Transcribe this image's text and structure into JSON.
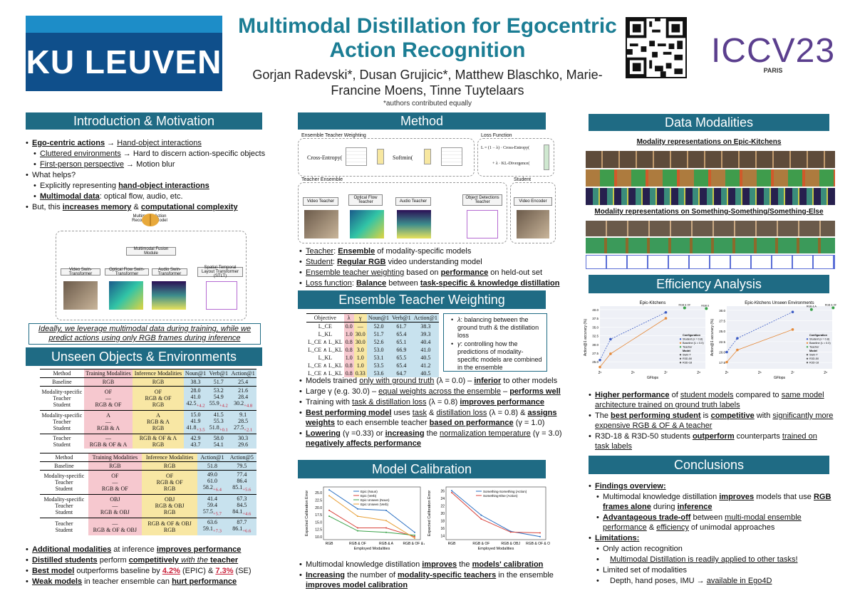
{
  "header": {
    "logo": "KU LEUVEN",
    "title": "Multimodal Distillation for Egocentric Action Recognition",
    "authors": "Gorjan Radevski*, Dusan Grujicic*, Matthew Blaschko, Marie-Francine Moens, Tinne Tuytelaars",
    "equal": "*authors contributed equally",
    "venue": "ICCV23",
    "city": "PARIS"
  },
  "intro": {
    "header": "Introduction & Motivation",
    "b1a": "Ego-centric actions",
    "b1b": " → ",
    "b1c": "Hand-object interactions",
    "b2a": "Cluttered environments",
    "b2b": " → Hard to discern action-specific objects",
    "b3a": "First-person perspective",
    "b3b": " → Motion blur",
    "b4": "What helps?",
    "b5a": "Explicitly representing ",
    "b5b": "hand-object interactions",
    "b6a": "Multimodal data",
    "b6b": ": optical flow, audio, etc.",
    "b7a": "But, this ",
    "b7b": "increases memory",
    "b7c": " & ",
    "b7d": "computational complexity",
    "diag_title": "Multimodal Action Recognition Model",
    "fusion": "Multimodal Fusion Module",
    "m1": "Video Swin-Transformer",
    "m2": "Optical Flow Swin-Transformer",
    "m3": "Audio Swin-Transformer",
    "m4": "Spatial-Temporal Layout Transformer (STLT)",
    "italic": "Ideally, we leverage multimodal data during training, while we predict actions using only RGB frames during inference"
  },
  "unseen": {
    "header": "Unseen Objects & Environments",
    "t1_head": [
      "Method",
      "Training Modalities",
      "Inference Modalities",
      "Noun@1",
      "Verb@1",
      "Action@1"
    ],
    "t1_baseline": [
      "Baseline",
      "RGB",
      "RGB",
      "38.3",
      "51.7",
      "25.4"
    ],
    "t1_groups": [
      {
        "m": [
          "Modality-specific",
          "Teacher",
          "Student"
        ],
        "tr": [
          "OF",
          "—",
          "RGB & OF"
        ],
        "inf": [
          "OF",
          "RGB & OF",
          "RGB"
        ],
        "n": [
          "28.0",
          "41.0",
          "42.5"
        ],
        "v": [
          "53.2",
          "54.9",
          "55.9"
        ],
        "a": [
          "21.6",
          "28.4",
          "30.2"
        ],
        "d": [
          "+4.2",
          "+4.2",
          "+4.8"
        ]
      },
      {
        "m": [
          "Modality-specific",
          "Teacher",
          "Student"
        ],
        "tr": [
          "A",
          "—",
          "RGB & A"
        ],
        "inf": [
          "A",
          "RGB & A",
          "RGB"
        ],
        "n": [
          "15.0",
          "41.9",
          "41.8"
        ],
        "v": [
          "41.5",
          "55.3",
          "51.8"
        ],
        "a": [
          "9.1",
          "28.5",
          "27.5"
        ],
        "d": [
          "+3.5",
          "+0.1",
          "+2.1"
        ]
      },
      {
        "m": [
          "Teacher",
          "Student"
        ],
        "tr": [
          "—",
          "RGB & OF & A"
        ],
        "inf": [
          "RGB & OF & A",
          "RGB"
        ],
        "n": [
          "42.9",
          "43.7"
        ],
        "v": [
          "58.0",
          "54.1"
        ],
        "a": [
          "30.3",
          "29.6"
        ],
        "d": [
          "+5.4",
          "+2.4",
          "+4.2"
        ]
      }
    ],
    "t2_head": [
      "Method",
      "Training Modalities",
      "Inference Modalities",
      "Action@1",
      "Action@5"
    ],
    "t2_baseline": [
      "Baseline",
      "RGB",
      "RGB",
      "51.8",
      "79.5"
    ],
    "t2_groups": [
      {
        "m": [
          "Modality-specific",
          "Teacher",
          "Student"
        ],
        "tr": [
          "OF",
          "—",
          "RGB & OF"
        ],
        "inf": [
          "OF",
          "RGB & OF",
          "RGB"
        ],
        "a1": [
          "49.0",
          "61.0",
          "58.2"
        ],
        "a5": [
          "77.4",
          "86.4",
          "85.1"
        ],
        "d": [
          "+6.4",
          "+5.6"
        ]
      },
      {
        "m": [
          "Modality-specific",
          "Teacher",
          "Student"
        ],
        "tr": [
          "OBJ",
          "—",
          "RGB & OBJ"
        ],
        "inf": [
          "OBJ",
          "RGB & OBJ",
          "RGB"
        ],
        "a1": [
          "41.4",
          "59.4",
          "57.5"
        ],
        "a5": [
          "67.3",
          "84.5",
          "84.1"
        ],
        "d": [
          "+5.7",
          "+4.6"
        ]
      },
      {
        "m": [
          "Teacher",
          "Student"
        ],
        "tr": [
          "—",
          "RGB & OF & OBJ"
        ],
        "inf": [
          "RGB & OF & OBJ",
          "RGB"
        ],
        "a1": [
          "63.6",
          "59.1"
        ],
        "a5": [
          "87.7",
          "86.1"
        ],
        "d": [
          "+7.3",
          "+6.6"
        ]
      }
    ],
    "c1a": "Additional modalities",
    "c1b": " at inference ",
    "c1c": "improves performance",
    "c2a": "Distilled students",
    "c2b": " perform ",
    "c2c": "competitively",
    "c2d": " with the ",
    "c2e": "teacher",
    "c3a": "Best model",
    "c3b": " outperforms baseline by ",
    "c3c": "4.2%",
    "c3d": " (EPIC) & ",
    "c3e": "7.3%",
    "c3f": " (SE)",
    "c4a": "Weak models",
    "c4b": " in teacher ensemble can ",
    "c4c": "hurt performance"
  },
  "method": {
    "header": "Method",
    "etw": "Ensemble Teacher Weighting",
    "lf": "Loss Function",
    "te": "Teacher Ensemble",
    "st": "Student",
    "vt": "Video Teacher",
    "oft": "Optical Flow Teacher",
    "at": "Audio Teacher",
    "odt": "Object Detections Teacher",
    "ve": "Video Encoder",
    "f1": "Cross-Entropy(",
    "f2": "Softmin(",
    "f3": "L = (1 − λ) · Cross-Entropy(",
    "f4": "+ λ · KL-Divergence(",
    "b1a": "Teacher",
    "b1b": ": ",
    "b1c": "Ensemble",
    "b1d": " of modality-specific models",
    "b2a": "Student",
    "b2b": ": ",
    "b2c": "Regular RGB",
    "b2d": " video understanding model",
    "b3a": "Ensemble teacher weighting",
    "b3b": " based on ",
    "b3c": "performance",
    "b3d": " on held-out set",
    "b4a": "Loss function",
    "b4b": ": ",
    "b4c": "Balance",
    "b4d": " between ",
    "b4e": "task-specific & knowledge distillation"
  },
  "etw": {
    "header": "Ensemble Teacher Weighting",
    "head": [
      "Objective",
      "λ",
      "γ",
      "Noun@1",
      "Verb@1",
      "Action@1"
    ],
    "rows": [
      [
        "L_CE",
        "0.0",
        "—",
        "52.0",
        "61.7",
        "38.3"
      ],
      [
        "L_KL",
        "1.0",
        "30.0",
        "51.7",
        "65.4",
        "39.3"
      ],
      [
        "L_CE ∧ L_KL",
        "0.8",
        "30.0",
        "52.6",
        "65.1",
        "40.4"
      ],
      [
        "L_CE ∧ L_KL",
        "0.8",
        "3.0",
        "53.0",
        "66.9",
        "41.0"
      ],
      [
        "L_KL",
        "1.0",
        "1.0",
        "53.1",
        "65.5",
        "40.5"
      ],
      [
        "L_CE ∧ L_KL",
        "0.8",
        "1.0",
        "53.5",
        "65.4",
        "41.2"
      ],
      [
        "L_CE ∧ L_KL",
        "0.8",
        "0.33",
        "53.6",
        "64.7",
        "40.5"
      ]
    ],
    "n1a": "λ",
    "n1b": ": balancing between the ground truth & the distillation loss",
    "n2a": "γ",
    "n2b": ": controlling how the predictions of modality-specific models are combined in the ensemble",
    "b1a": "Models trained ",
    "b1b": "only with ground truth",
    "b1c": " (λ = 0.0) – ",
    "b1d": "inferior",
    "b1e": " to other models",
    "b2a": "Large γ (e.g. 30.0) – ",
    "b2b": "equal weights across the ensemble",
    "b2c": " – ",
    "b2d": "performs well",
    "b3a": "Training with ",
    "b3b": "task & distillation loss",
    "b3c": " (λ = 0.8) ",
    "b3d": "improves performance",
    "b4a": "Best performing model",
    "b4b": " uses ",
    "b4c": "task",
    "b4d": " & ",
    "b4e": "distillation loss",
    "b4f": " (λ = 0.8) & ",
    "b4g": "assigns weights",
    "b4h": " to each ensemble teacher ",
    "b4i": "based on performance",
    "b4j": " (γ = 1.0)",
    "b5a": "Lowering",
    "b5b": " (γ =0.33) or ",
    "b5c": "increasing",
    "b5d": " the ",
    "b5e": "normalization temperature",
    "b5f": " (γ = 3.0) ",
    "b5g": "negatively affects performance"
  },
  "calib": {
    "header": "Model Calibration",
    "b1a": "Multimodal knowledge distillation ",
    "b1b": "improves",
    "b1c": " the ",
    "b1d": "models' calibration",
    "b2a": "Increasing",
    "b2b": " the number of ",
    "b2c": "modality-specific teachers",
    "b2d": " in the ensemble ",
    "b2e": "improves model calibration"
  },
  "data": {
    "header": "Data Modalities",
    "cap1": "Modality representations on Epic-Kitchens",
    "cap2": "Modality representations on Something-Something/Something-Else"
  },
  "eff": {
    "header": "Efficiency Analysis",
    "b1a": "Higher performance",
    "b1b": " of ",
    "b1c": "student models",
    "b1d": " compared to ",
    "b1e": "same model architecture trained on ground truth labels",
    "b2a": "The ",
    "b2b": "best performing student",
    "b2c": " is ",
    "b2d": "competitive",
    "b2e": " with ",
    "b2f": "significantly more expensive RGB & OF & A teacher",
    "b3a": "R3D-18 & R3D-50 students ",
    "b3b": "outperform",
    "b3c": " counterparts ",
    "b3d": "trained on task labels"
  },
  "concl": {
    "header": "Conclusions",
    "b1": "Findings overview:",
    "b2a": "Multimodal knowledge distillation ",
    "b2b": "improves",
    "b2c": " models that use ",
    "b2d": "RGB frames alone",
    "b2e": " during ",
    "b2f": "inference",
    "b3a": "Advantageous trade-off",
    "b3b": " between ",
    "b3c": "multi-modal ensemble performance",
    "b3d": " & ",
    "b3e": "efficiency",
    "b3f": " of unimodal approaches",
    "b4": "Limitations:",
    "b5": "Only action recognition",
    "b6": "Multimodal Distillation is readily applied to other tasks!",
    "b7": "Limited set of modalities",
    "b8a": "Depth, hand poses, IMU → ",
    "b8b": "available in Ego4D"
  },
  "chart_data": [
    {
      "type": "line",
      "title": "",
      "xlabel": "Employed Modalities",
      "ylabel": "Expected Calibration Error",
      "categories": [
        "RGB",
        "RGB & OF",
        "RGB & A",
        "RGB & OF & A"
      ],
      "ylim": [
        9,
        27
      ],
      "yticks": [
        "10.0",
        "12.5",
        "15.0",
        "17.5",
        "20.0",
        "22.5",
        "25.0"
      ],
      "series": [
        {
          "name": "Epic (Noun)",
          "color": "#2a6fc2",
          "values": [
            26.0,
            19.5,
            19.0,
            11.5
          ]
        },
        {
          "name": "Epic (Verb)",
          "color": "#d9453d",
          "values": [
            19.0,
            13.0,
            13.0,
            10.0
          ]
        },
        {
          "name": "Epic Unseen (Noun)",
          "color": "#3aa24a",
          "values": [
            17.0,
            12.0,
            11.5,
            10.5
          ]
        },
        {
          "name": "Epic Unseen (Verb)",
          "color": "#e8a13a",
          "values": [
            24.0,
            17.0,
            15.5,
            9.5
          ]
        }
      ]
    },
    {
      "type": "line",
      "title": "",
      "xlabel": "Employed Modalities",
      "ylabel": "Expected Calibration Error",
      "categories": [
        "RGB",
        "RGB & OF",
        "RGB & OBJ",
        "RGB & OF & OBJ"
      ],
      "ylim": [
        13,
        27
      ],
      "yticks": [
        "14",
        "16",
        "18",
        "20",
        "22",
        "24",
        "26"
      ],
      "series": [
        {
          "name": "Something-Something (Action)",
          "color": "#2a6fc2",
          "values": [
            26.0,
            19.5,
            15.2,
            13.8
          ]
        },
        {
          "name": "Something-Else (Action)",
          "color": "#d9453d",
          "values": [
            25.5,
            18.5,
            15.0,
            14.8
          ]
        }
      ]
    },
    {
      "type": "scatter",
      "title": "Epic-Kitchens",
      "xlabel": "GFlops",
      "ylabel": "Action@1 accuracy (%)",
      "ylim": [
        23,
        41
      ],
      "yticks": [
        "25.0",
        "27.5",
        "30.0",
        "32.5",
        "35.0",
        "37.5",
        "40.0"
      ],
      "xticks": [
        "2⁵",
        "2⁶",
        "2⁷",
        "2⁸"
      ],
      "labels": [
        "RGB & OF",
        "RGB & A",
        "RGB & OF & A"
      ],
      "legend": [
        "Configuration",
        "Student (λ = 0.8)",
        "Baseline (λ = 0.0)",
        "Teacher",
        "Model",
        "Swin-T",
        "R3D-50",
        "R3D-18"
      ]
    },
    {
      "type": "scatter",
      "title": "Epic-Kitchens Unseen Environments",
      "xlabel": "GFlops",
      "ylabel": "Action@1 accuracy (%)",
      "ylim": [
        16,
        31
      ],
      "yticks": [
        "17.5",
        "20.0",
        "22.5",
        "25.0",
        "27.5",
        "30.0"
      ],
      "xticks": [
        "2⁵",
        "2⁶",
        "2⁷",
        "2⁸"
      ],
      "labels": [
        "RGB & A",
        "RGB & OF & A",
        "RGB & OF"
      ],
      "legend": [
        "Configuration",
        "Student (λ = 0.8)",
        "Baseline (λ = 0.0)",
        "Teacher",
        "Model",
        "Swin-T",
        "R3D-50",
        "R3D-18"
      ]
    }
  ]
}
